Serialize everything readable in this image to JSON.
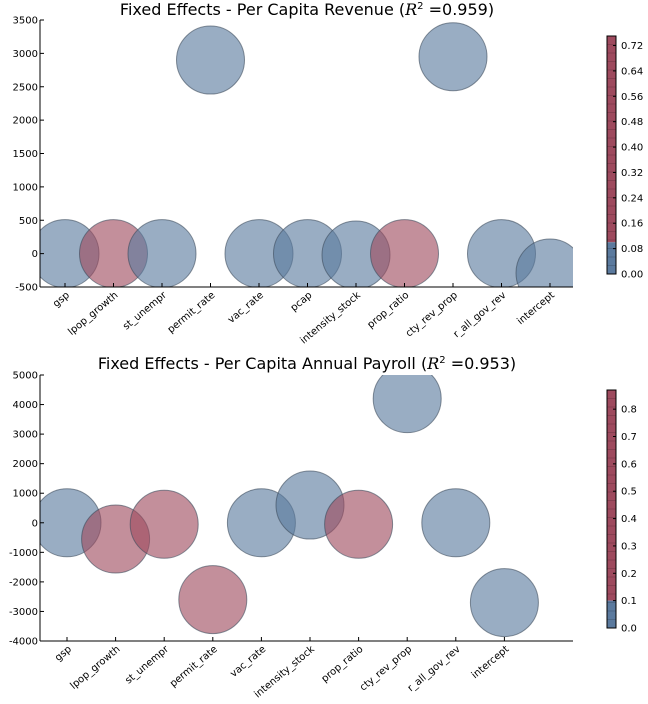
{
  "chart_data": [
    {
      "type": "scatter",
      "title": "Fixed Effects - Per Capita Revenue (R² =0.959)",
      "title_parts": {
        "prefix": "Fixed Effects - Per Capita Revenue (",
        "r": "R",
        "sup": "2",
        "suffix": " =0.959)"
      },
      "categories": [
        "gsp",
        "lpop_growth",
        "st_unempr",
        "permit_rate",
        "vac_rate",
        "pcap",
        "intensity_stock",
        "prop_ratio",
        "cty_rev_prop",
        "r_all_gov_rev",
        "intercept"
      ],
      "values": [
        0,
        0,
        0,
        2900,
        0,
        0,
        -20,
        0,
        2950,
        0,
        -290
      ],
      "color_values": [
        0.03,
        0.72,
        0.03,
        0.03,
        0.03,
        0.03,
        0.03,
        0.72,
        0.03,
        0.03,
        0.03
      ],
      "ylim": [
        -500,
        3500
      ],
      "yticks": [
        "-500",
        "0",
        "500",
        "1000",
        "1500",
        "2000",
        "2500",
        "3000",
        "3500"
      ],
      "colorbar_ticks": [
        "0.00",
        "0.08",
        "0.16",
        "0.24",
        "0.32",
        "0.40",
        "0.48",
        "0.56",
        "0.64",
        "0.72"
      ],
      "colorbar_max": 0.75,
      "colorbar_split": 0.1,
      "grid": false
    },
    {
      "type": "scatter",
      "title": "Fixed Effects - Per Capita Annual Payroll (R² =0.953)",
      "title_parts": {
        "prefix": "Fixed Effects - Per Capita Annual Payroll (",
        "r": "R",
        "sup": "2",
        "suffix": " =0.953)"
      },
      "categories": [
        "gsp",
        "lpop_growth",
        "st_unempr",
        "permit_rate",
        "vac_rate",
        "intensity_stock",
        "prop_ratio",
        "cty_rev_prop",
        "r_all_gov_rev",
        "intercept"
      ],
      "values": [
        0,
        -550,
        -50,
        -2600,
        0,
        600,
        -50,
        4200,
        0,
        -2700
      ],
      "color_values": [
        0.03,
        0.85,
        0.85,
        0.85,
        0.03,
        0.03,
        0.85,
        0.03,
        0.03,
        0.03
      ],
      "ylim": [
        -4000,
        5000
      ],
      "yticks": [
        "-4000",
        "-3000",
        "-2000",
        "-1000",
        "0",
        "1000",
        "2000",
        "3000",
        "4000",
        "5000"
      ],
      "colorbar_ticks": [
        "0.0",
        "0.1",
        "0.2",
        "0.3",
        "0.4",
        "0.5",
        "0.6",
        "0.7",
        "0.8"
      ],
      "colorbar_max": 0.87,
      "colorbar_split": 0.1,
      "grid": false
    }
  ],
  "colors": {
    "low": "#5b7a9e",
    "high": "#9e4a5e",
    "axis": "#000000"
  }
}
